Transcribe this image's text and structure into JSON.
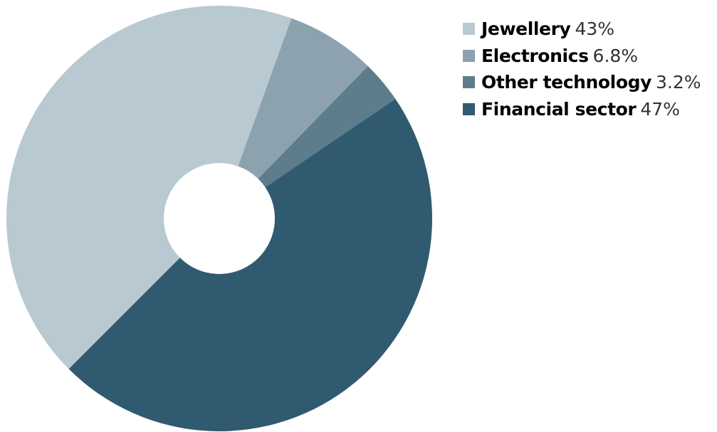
{
  "chart_data": {
    "type": "pie",
    "title": "",
    "donut": true,
    "legend_position": "top-right",
    "categories": [
      "Jewellery",
      "Electronics",
      "Other technology",
      "Financial sector"
    ],
    "values": [
      43,
      6.8,
      3.2,
      47
    ],
    "value_labels": [
      "43%",
      "6.8%",
      "3.2%",
      "47%"
    ],
    "colors": [
      "#b9c9d2",
      "#8ca2ae",
      "#5e7d8c",
      "#305a70"
    ]
  }
}
